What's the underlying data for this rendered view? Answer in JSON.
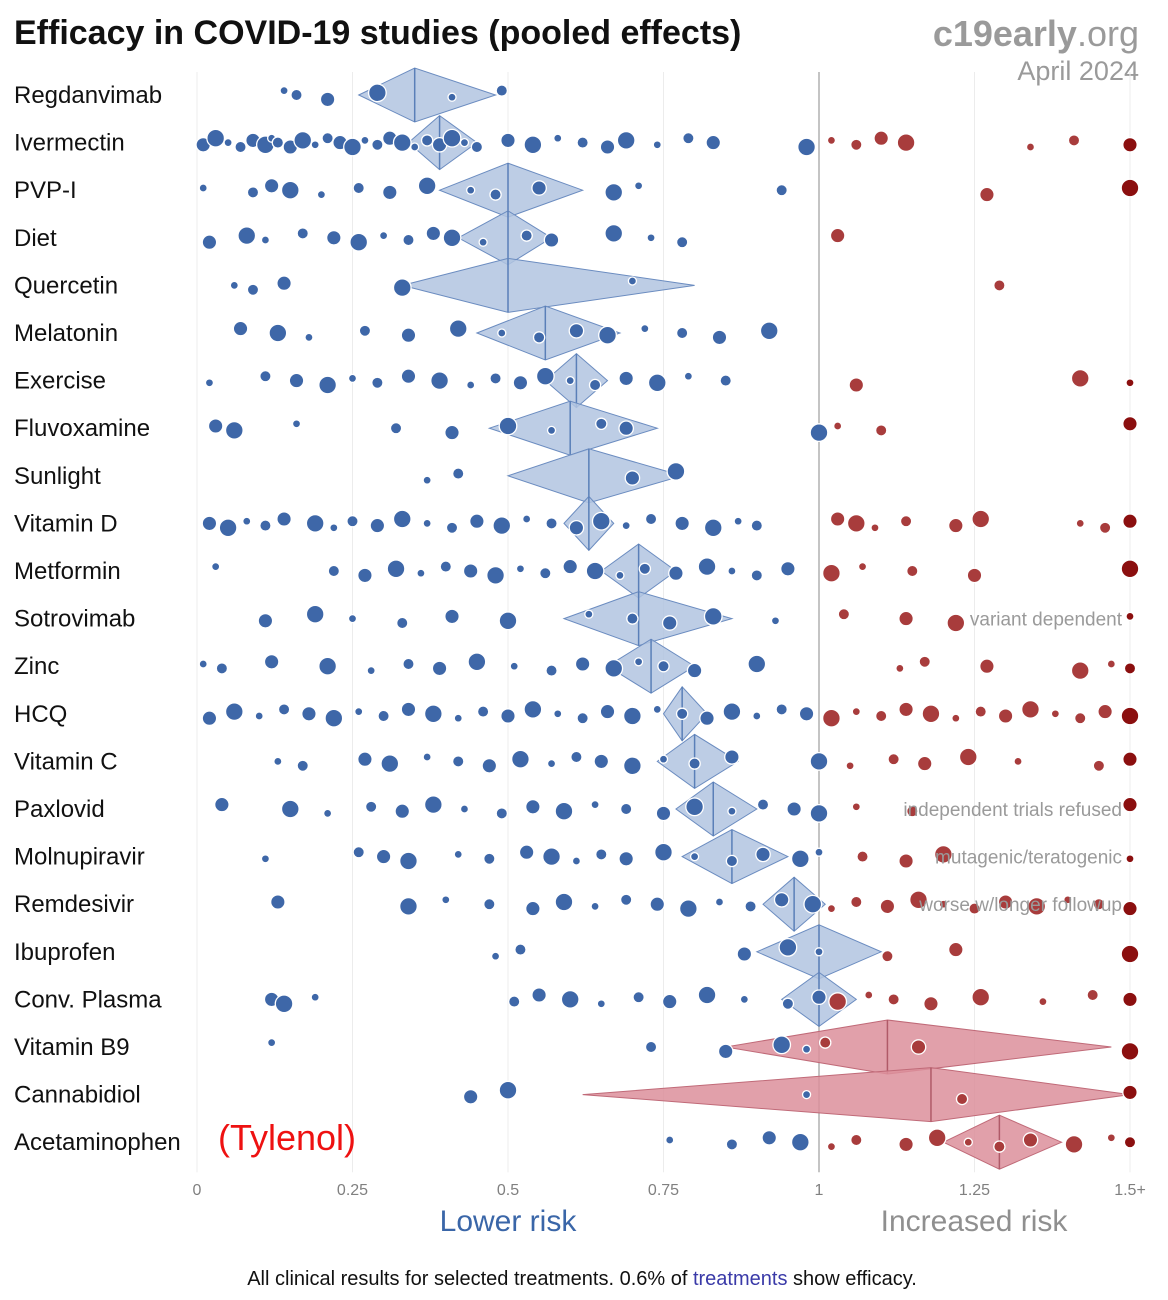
{
  "chart_data": {
    "type": "scatter",
    "title": "Efficacy in COVID-19 studies (pooled effects)",
    "source": {
      "brand": "c19early",
      "suffix": ".org",
      "date": "April 2024"
    },
    "x_axis": {
      "min": 0,
      "max": 1.5,
      "ticks": [
        "0",
        "0.25",
        "0.5",
        "0.75",
        "1",
        "1.25",
        "1.5+"
      ],
      "reference_value": 1
    },
    "direction_labels": {
      "lower": "Lower risk",
      "higher": "Increased risk"
    },
    "callout": "(Tylenol)",
    "footer": {
      "before": "All clinical results for selected treatments. 0.6% of ",
      "link": "treatments",
      "after": " show efficacy."
    },
    "colors": {
      "benefit": "#3e67a8",
      "harm": "#a83c3c",
      "harm_max": "#8b0f0f",
      "diamond_benefit": "#b1c4e0",
      "diamond_harm": "#dc8f9b"
    },
    "series": [
      {
        "name": "Regdanvimab",
        "pooled": 0.35,
        "ci": [
          0.26,
          0.48
        ],
        "studies": [
          0.14,
          0.16,
          0.21,
          0.29,
          0.41,
          0.49
        ]
      },
      {
        "name": "Ivermectin",
        "pooled": 0.39,
        "ci": [
          0.34,
          0.45
        ],
        "studies": [
          0.01,
          0.03,
          0.05,
          0.07,
          0.09,
          0.11,
          0.12,
          0.13,
          0.15,
          0.17,
          0.19,
          0.21,
          0.23,
          0.25,
          0.27,
          0.29,
          0.31,
          0.33,
          0.35,
          0.37,
          0.39,
          0.41,
          0.43,
          0.45,
          0.5,
          0.54,
          0.58,
          0.62,
          0.66,
          0.69,
          0.74,
          0.79,
          0.83,
          0.98,
          1.02,
          1.06,
          1.1,
          1.14,
          1.34,
          1.41,
          1.5
        ]
      },
      {
        "name": "PVP-I",
        "pooled": 0.5,
        "ci": [
          0.39,
          0.62
        ],
        "studies": [
          0.01,
          0.09,
          0.12,
          0.15,
          0.2,
          0.26,
          0.31,
          0.37,
          0.44,
          0.48,
          0.55,
          0.67,
          0.71,
          0.94,
          1.27,
          1.5
        ]
      },
      {
        "name": "Diet",
        "pooled": 0.5,
        "ci": [
          0.42,
          0.57
        ],
        "studies": [
          0.02,
          0.08,
          0.11,
          0.17,
          0.22,
          0.26,
          0.3,
          0.34,
          0.38,
          0.41,
          0.46,
          0.53,
          0.57,
          0.67,
          0.73,
          0.78,
          1.03
        ]
      },
      {
        "name": "Quercetin",
        "pooled": 0.5,
        "ci": [
          0.33,
          0.8
        ],
        "studies": [
          0.06,
          0.09,
          0.14,
          0.33,
          0.7,
          1.29
        ]
      },
      {
        "name": "Melatonin",
        "pooled": 0.56,
        "ci": [
          0.45,
          0.68
        ],
        "studies": [
          0.07,
          0.13,
          0.18,
          0.27,
          0.34,
          0.42,
          0.49,
          0.55,
          0.61,
          0.66,
          0.72,
          0.78,
          0.84,
          0.92
        ]
      },
      {
        "name": "Exercise",
        "pooled": 0.61,
        "ci": [
          0.56,
          0.66
        ],
        "studies": [
          0.02,
          0.11,
          0.16,
          0.21,
          0.25,
          0.29,
          0.34,
          0.39,
          0.44,
          0.48,
          0.52,
          0.56,
          0.6,
          0.64,
          0.69,
          0.74,
          0.79,
          0.85,
          1.06,
          1.42,
          1.5
        ]
      },
      {
        "name": "Fluvoxamine",
        "pooled": 0.6,
        "ci": [
          0.47,
          0.74
        ],
        "studies": [
          0.03,
          0.06,
          0.16,
          0.32,
          0.41,
          0.5,
          0.57,
          0.65,
          0.69,
          1,
          1.03,
          1.1,
          1.5
        ]
      },
      {
        "name": "Sunlight",
        "pooled": 0.63,
        "ci": [
          0.5,
          0.78
        ],
        "studies": [
          0.37,
          0.42,
          0.7,
          0.77
        ]
      },
      {
        "name": "Vitamin D",
        "pooled": 0.63,
        "ci": [
          0.59,
          0.67
        ],
        "studies": [
          0.02,
          0.05,
          0.08,
          0.11,
          0.14,
          0.19,
          0.22,
          0.25,
          0.29,
          0.33,
          0.37,
          0.41,
          0.45,
          0.49,
          0.53,
          0.57,
          0.61,
          0.65,
          0.69,
          0.73,
          0.78,
          0.83,
          0.87,
          0.9,
          1.03,
          1.06,
          1.09,
          1.14,
          1.22,
          1.26,
          1.42,
          1.46,
          1.5
        ]
      },
      {
        "name": "Metformin",
        "pooled": 0.71,
        "ci": [
          0.65,
          0.77
        ],
        "studies": [
          0.03,
          0.22,
          0.27,
          0.32,
          0.36,
          0.4,
          0.44,
          0.48,
          0.52,
          0.56,
          0.6,
          0.64,
          0.68,
          0.72,
          0.77,
          0.82,
          0.86,
          0.9,
          0.95,
          1.02,
          1.07,
          1.15,
          1.25,
          1.5
        ]
      },
      {
        "name": "Sotrovimab",
        "pooled": 0.71,
        "ci": [
          0.59,
          0.86
        ],
        "studies": [
          0.11,
          0.19,
          0.25,
          0.33,
          0.41,
          0.5,
          0.63,
          0.7,
          0.76,
          0.83,
          0.93,
          1.04,
          1.14,
          1.22,
          1.5
        ],
        "note": "variant dependent"
      },
      {
        "name": "Zinc",
        "pooled": 0.73,
        "ci": [
          0.66,
          0.8
        ],
        "studies": [
          0.01,
          0.04,
          0.12,
          0.21,
          0.28,
          0.34,
          0.39,
          0.45,
          0.51,
          0.57,
          0.62,
          0.67,
          0.71,
          0.75,
          0.8,
          0.9,
          1.13,
          1.17,
          1.27,
          1.42,
          1.47,
          1.5
        ]
      },
      {
        "name": "HCQ",
        "pooled": 0.78,
        "ci": [
          0.75,
          0.82
        ],
        "studies": [
          0.02,
          0.06,
          0.1,
          0.14,
          0.18,
          0.22,
          0.26,
          0.3,
          0.34,
          0.38,
          0.42,
          0.46,
          0.5,
          0.54,
          0.58,
          0.62,
          0.66,
          0.7,
          0.74,
          0.78,
          0.82,
          0.86,
          0.9,
          0.94,
          0.98,
          1.02,
          1.06,
          1.1,
          1.14,
          1.18,
          1.22,
          1.26,
          1.3,
          1.34,
          1.38,
          1.42,
          1.46,
          1.5
        ]
      },
      {
        "name": "Vitamin C",
        "pooled": 0.8,
        "ci": [
          0.74,
          0.87
        ],
        "studies": [
          0.13,
          0.17,
          0.27,
          0.31,
          0.37,
          0.42,
          0.47,
          0.52,
          0.57,
          0.61,
          0.65,
          0.7,
          0.75,
          0.8,
          0.86,
          1,
          1.05,
          1.12,
          1.17,
          1.24,
          1.32,
          1.45,
          1.5
        ]
      },
      {
        "name": "Paxlovid",
        "pooled": 0.83,
        "ci": [
          0.77,
          0.9
        ],
        "studies": [
          0.04,
          0.15,
          0.21,
          0.28,
          0.33,
          0.38,
          0.43,
          0.49,
          0.54,
          0.59,
          0.64,
          0.69,
          0.75,
          0.8,
          0.86,
          0.91,
          0.96,
          1,
          1.06,
          1.15,
          1.5
        ],
        "note": "independent trials refused"
      },
      {
        "name": "Molnupiravir",
        "pooled": 0.86,
        "ci": [
          0.78,
          0.95
        ],
        "studies": [
          0.11,
          0.26,
          0.3,
          0.34,
          0.42,
          0.47,
          0.53,
          0.57,
          0.61,
          0.65,
          0.69,
          0.75,
          0.8,
          0.86,
          0.91,
          0.97,
          1,
          1.07,
          1.14,
          1.2,
          1.5
        ],
        "note": "mutagenic/teratogenic"
      },
      {
        "name": "Remdesivir",
        "pooled": 0.96,
        "ci": [
          0.91,
          1.01
        ],
        "studies": [
          0.13,
          0.34,
          0.4,
          0.47,
          0.54,
          0.59,
          0.64,
          0.69,
          0.74,
          0.79,
          0.84,
          0.89,
          0.94,
          0.99,
          1.02,
          1.06,
          1.11,
          1.16,
          1.2,
          1.25,
          1.3,
          1.35,
          1.4,
          1.45,
          1.5
        ],
        "note": "worse w/longer followup"
      },
      {
        "name": "Ibuprofen",
        "pooled": 1,
        "ci": [
          0.9,
          1.1
        ],
        "studies": [
          0.48,
          0.52,
          0.88,
          0.95,
          1,
          1.11,
          1.22,
          1.5
        ]
      },
      {
        "name": "Conv. Plasma",
        "pooled": 1,
        "ci": [
          0.94,
          1.06
        ],
        "studies": [
          0.12,
          0.14,
          0.19,
          0.51,
          0.55,
          0.6,
          0.65,
          0.71,
          0.76,
          0.82,
          0.88,
          0.95,
          1,
          1.03,
          1.08,
          1.12,
          1.18,
          1.26,
          1.36,
          1.44,
          1.5
        ]
      },
      {
        "name": "Vitamin B9",
        "pooled": 1.11,
        "ci": [
          0.85,
          1.47
        ],
        "studies": [
          0.12,
          0.73,
          0.85,
          0.94,
          0.98,
          1.01,
          1.16,
          1.5
        ]
      },
      {
        "name": "Cannabidiol",
        "pooled": 1.18,
        "ci": [
          0.62,
          1.52
        ],
        "studies": [
          0.44,
          0.5,
          0.98,
          1.23,
          1.5
        ]
      },
      {
        "name": "Acetaminophen",
        "pooled": 1.29,
        "ci": [
          1.2,
          1.39
        ],
        "studies": [
          0.76,
          0.86,
          0.92,
          0.97,
          1.02,
          1.06,
          1.14,
          1.19,
          1.24,
          1.29,
          1.34,
          1.41,
          1.47,
          1.5
        ]
      }
    ]
  }
}
